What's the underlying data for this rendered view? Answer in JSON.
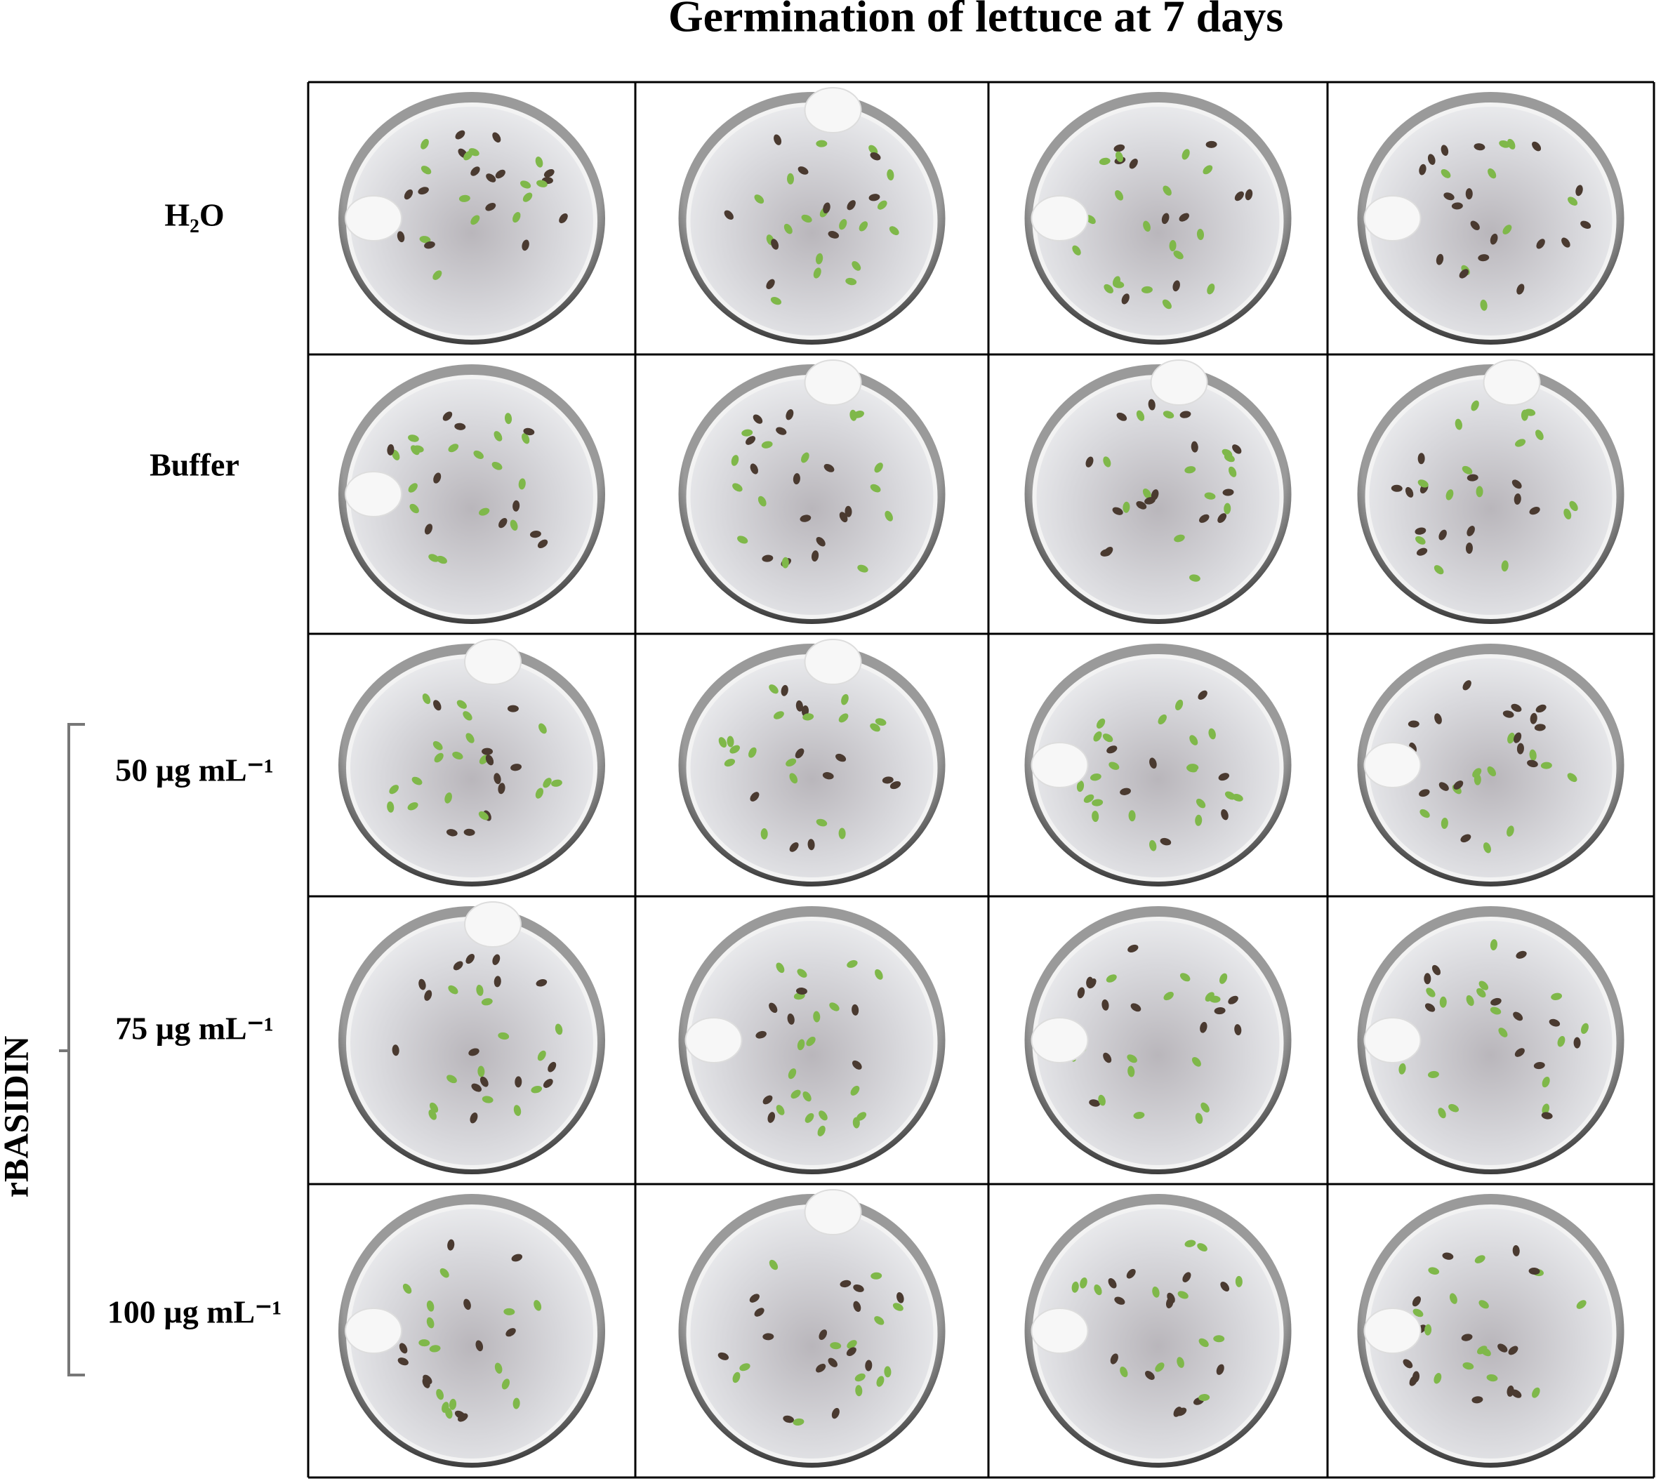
{
  "header": {
    "title": "Germination of lettuce at 7 days"
  },
  "rows": [
    {
      "label": "H₂O"
    },
    {
      "label": "Buffer"
    },
    {
      "label": "50 µg mL⁻¹"
    },
    {
      "label": "75 µg mL⁻¹"
    },
    {
      "label": "100 µg mL⁻¹"
    }
  ],
  "group": {
    "label": "rBASIDIN"
  }
}
